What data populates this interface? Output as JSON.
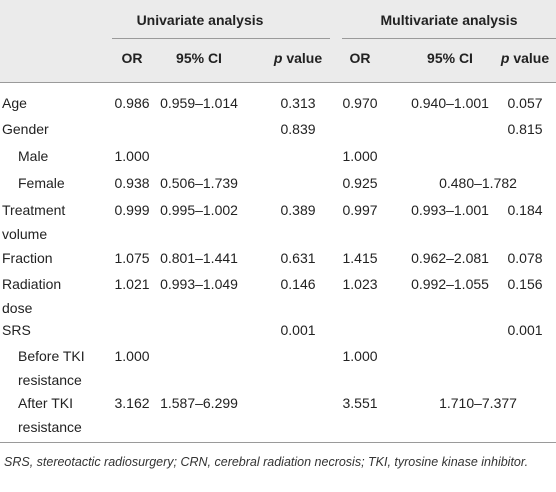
{
  "table": {
    "groups": [
      "Univariate analysis",
      "Multivariate analysis"
    ],
    "columns": [
      "OR",
      "95% CI",
      "p value",
      "OR",
      "95% CI",
      "p value"
    ],
    "rows": [
      {
        "label": "Age",
        "cells": [
          "0.986",
          "0.959–1.014",
          "0.313",
          "0.970",
          "0.940–1.001",
          "0.057"
        ]
      },
      {
        "label": "Gender",
        "cells": [
          null,
          null,
          "0.839",
          null,
          null,
          "0.815"
        ]
      },
      {
        "label": "Male",
        "cells": [
          "1.000",
          null,
          null,
          "1.000",
          null,
          null
        ]
      },
      {
        "label": "Female",
        "cells": [
          "0.938",
          "0.506–1.739",
          null,
          "0.925",
          "0.480–1.782",
          null
        ]
      },
      {
        "label": "Treatment volume",
        "cells": [
          "0.999",
          "0.995–1.002",
          "0.389",
          "0.997",
          "0.993–1.001",
          "0.184"
        ]
      },
      {
        "label": "Fraction",
        "cells": [
          "1.075",
          "0.801–1.441",
          "0.631",
          "1.415",
          "0.962–2.081",
          "0.078"
        ]
      },
      {
        "label": "Radiation dose",
        "cells": [
          "1.021",
          "0.993–1.049",
          "0.146",
          "1.023",
          "0.992–1.055",
          "0.156"
        ]
      },
      {
        "label": "SRS",
        "cells": [
          null,
          null,
          "0.001",
          null,
          null,
          "0.001"
        ]
      },
      {
        "label": "Before TKI resistance",
        "cells": [
          "1.000",
          null,
          null,
          "1.000",
          null,
          null
        ]
      },
      {
        "label": "After TKI resistance",
        "cells": [
          "3.162",
          "1.587–6.299",
          null,
          "3.551",
          "1.710–7.377",
          null
        ]
      }
    ],
    "footnote": "SRS, stereotactic radiosurgery; CRN, cerebral radiation necrosis; TKI, tyrosine kinase inhibitor."
  }
}
